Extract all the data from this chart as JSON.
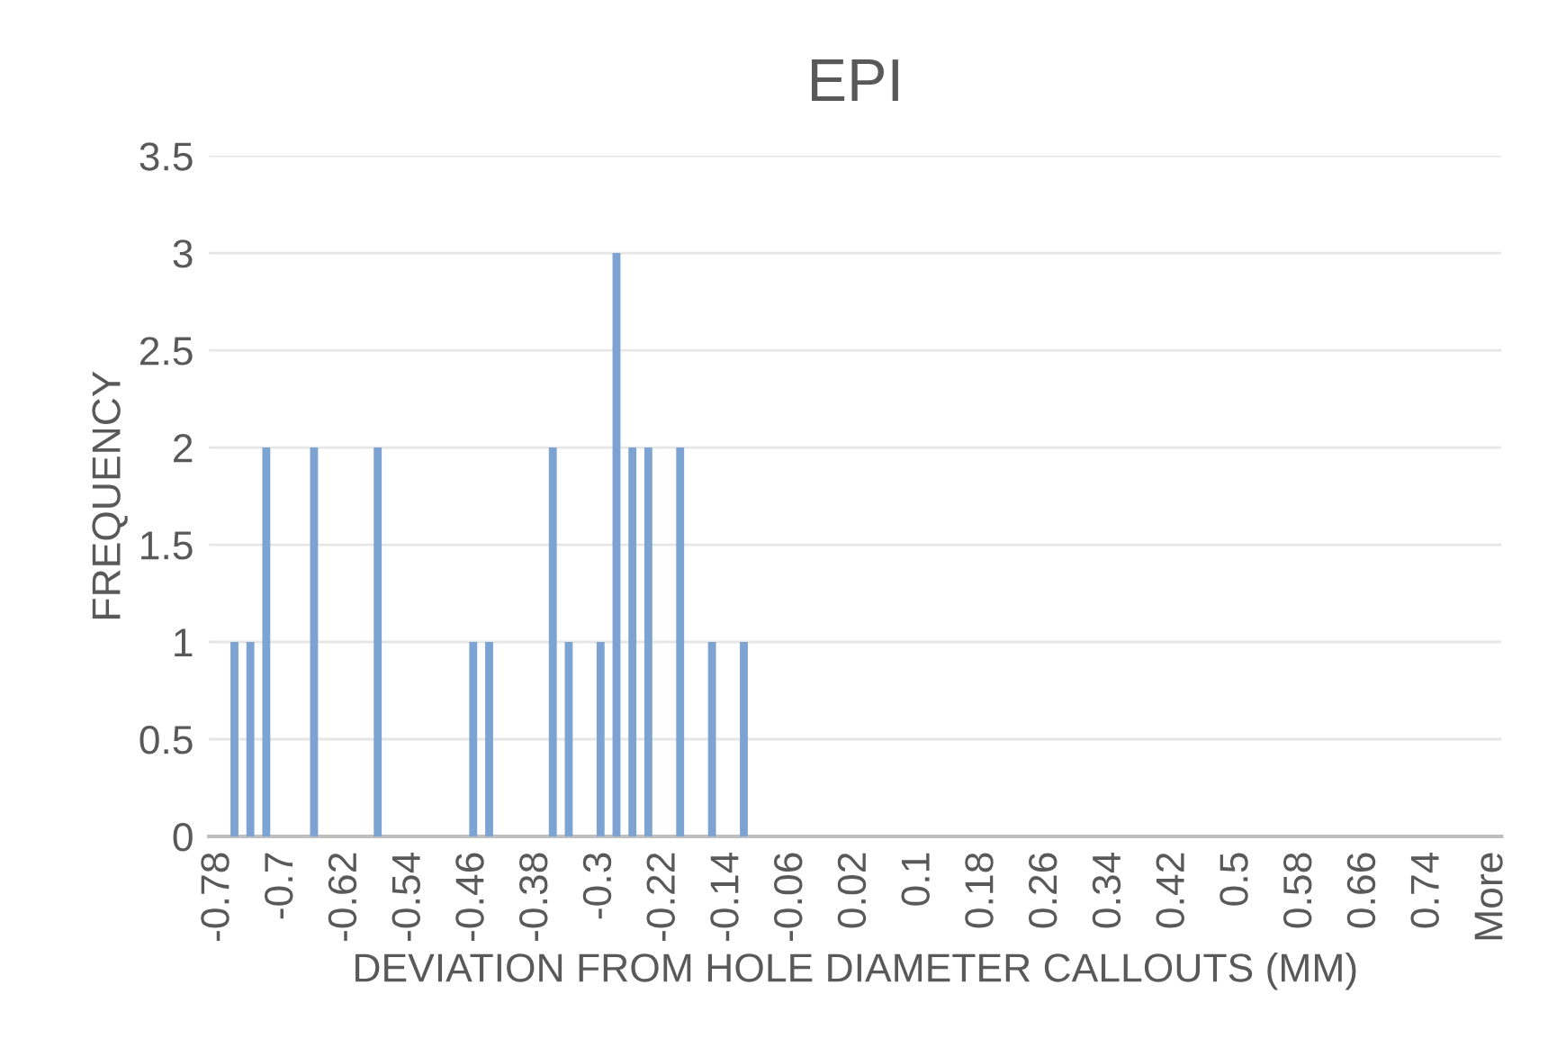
{
  "chart_data": {
    "type": "bar",
    "title": "EPI",
    "xlabel": "DEVIATION FROM HOLE DIAMETER CALLOUTS (MM)",
    "ylabel": "FREQUENCY",
    "categories": [
      "-0.78",
      null,
      null,
      null,
      "-0.7",
      null,
      null,
      null,
      "-0.62",
      null,
      null,
      null,
      "-0.54",
      null,
      null,
      null,
      "-0.46",
      null,
      null,
      null,
      "-0.38",
      null,
      null,
      null,
      "-0.3",
      null,
      null,
      null,
      "-0.22",
      null,
      null,
      null,
      "-0.14",
      null,
      null,
      null,
      "-0.06",
      null,
      null,
      null,
      "0.02",
      null,
      null,
      null,
      "0.1",
      null,
      null,
      null,
      "0.18",
      null,
      null,
      null,
      "0.26",
      null,
      null,
      null,
      "0.34",
      null,
      null,
      null,
      "0.42",
      null,
      null,
      null,
      "0.5",
      null,
      null,
      null,
      "0.58",
      null,
      null,
      null,
      "0.66",
      null,
      null,
      null,
      "0.74",
      null,
      null,
      null,
      "More"
    ],
    "values": [
      0,
      1,
      1,
      2,
      0,
      0,
      2,
      0,
      0,
      0,
      2,
      0,
      0,
      0,
      0,
      0,
      1,
      1,
      0,
      0,
      0,
      2,
      1,
      0,
      1,
      3,
      2,
      2,
      0,
      2,
      0,
      1,
      0,
      1,
      0,
      0,
      0,
      0,
      0,
      0,
      0,
      0,
      0,
      0,
      0,
      0,
      0,
      0,
      0,
      0,
      0,
      0,
      0,
      0,
      0,
      0,
      0,
      0,
      0,
      0,
      0,
      0,
      0,
      0,
      0,
      0,
      0,
      0,
      0,
      0,
      0,
      0,
      0,
      0,
      0,
      0,
      0,
      0,
      0,
      0,
      0
    ],
    "color": "#7da3d3",
    "ylim": [
      0,
      3.5
    ],
    "yticks": [
      0,
      0.5,
      1,
      1.5,
      2,
      2.5,
      3,
      3.5
    ],
    "grid": "y"
  }
}
